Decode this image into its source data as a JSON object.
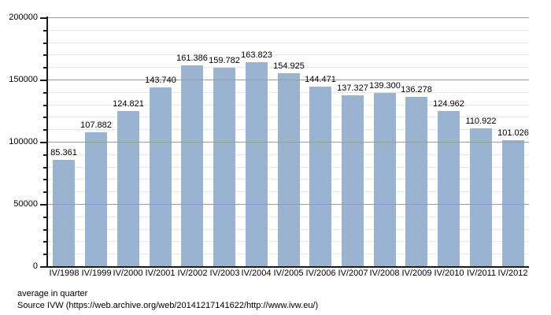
{
  "chart_data": {
    "type": "bar",
    "title": "",
    "categories": [
      "IV/1998",
      "IV/1999",
      "IV/2000",
      "IV/2001",
      "IV/2002",
      "IV/2003",
      "IV/2004",
      "IV/2005",
      "IV/2006",
      "IV/2007",
      "IV/2008",
      "IV/2009",
      "IV/2010",
      "IV/2011",
      "IV/2012"
    ],
    "values": [
      85361,
      107882,
      124821,
      143740,
      161386,
      159782,
      163823,
      154925,
      144471,
      137327,
      139300,
      136278,
      124962,
      110922,
      101026
    ],
    "value_labels": [
      "85.361",
      "107.882",
      "124.821",
      "143.740",
      "161.386",
      "159.782",
      "163.823",
      "154.925",
      "144.471",
      "137.327",
      "139.300",
      "136.278",
      "124.962",
      "110.922",
      "101.026"
    ],
    "ylim": [
      0,
      200000
    ],
    "ytick_step": 50000,
    "ytick_labels": [
      "0",
      "50000",
      "100000",
      "150000",
      "200000"
    ],
    "minor_step": 10000,
    "grid": "on",
    "legend": "none",
    "bar_color": "#9ab3d0",
    "major_grid_color": "#9b9b9b",
    "minor_grid_color": "#e8e8e8",
    "axis_color": "#1a1a1a"
  },
  "footer": {
    "caption": "average in quarter",
    "source": "Source IVW (https://web.archive.org/web/20141217141622/http://www.ivw.eu/)"
  }
}
